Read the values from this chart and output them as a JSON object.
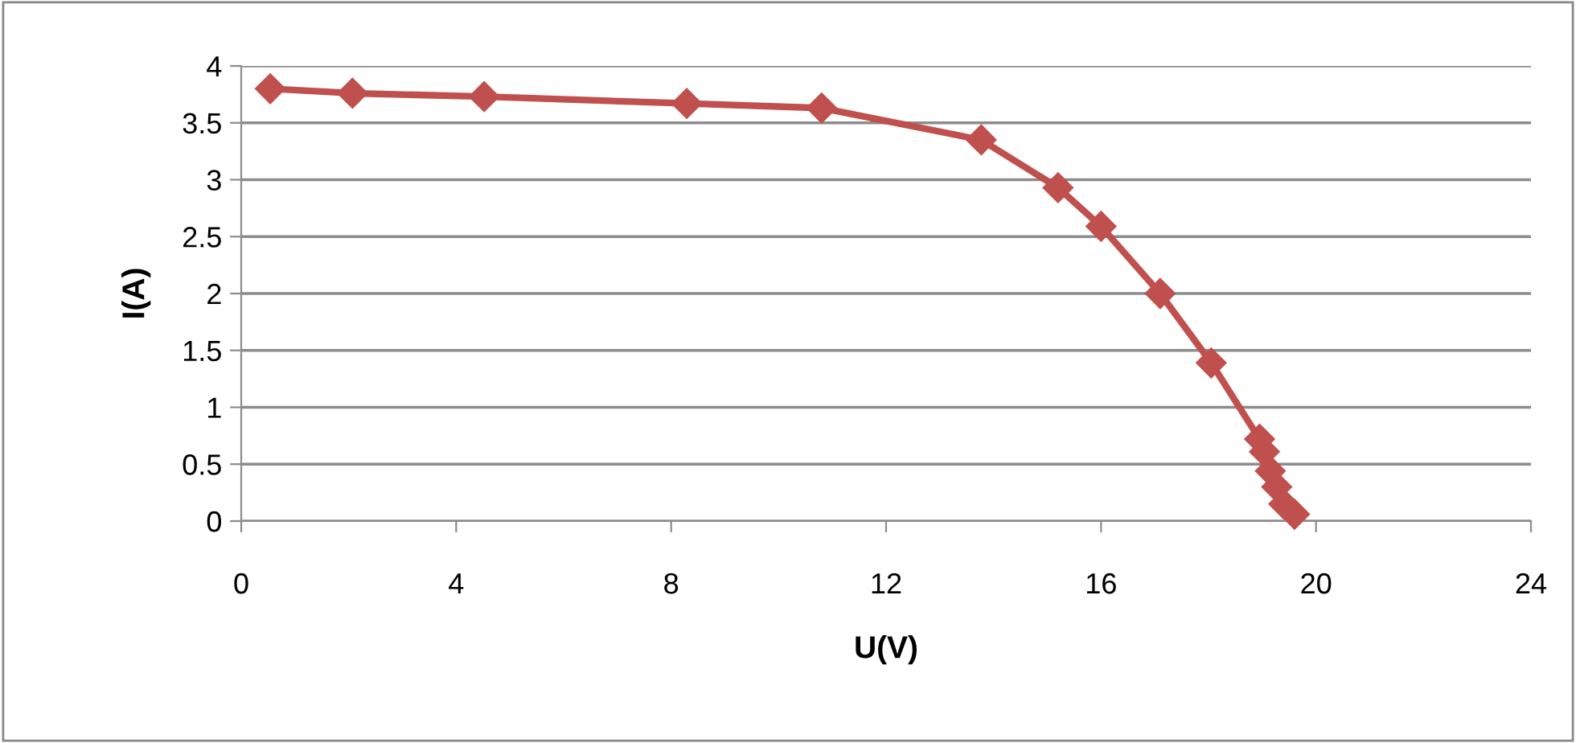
{
  "chart_data": {
    "type": "line",
    "xlabel": "U(V)",
    "ylabel": "I(A)",
    "x": [
      0.54,
      2.07,
      4.52,
      8.29,
      10.8,
      13.77,
      15.2,
      16.0,
      17.1,
      18.05,
      18.95,
      19.04,
      19.15,
      19.27,
      19.4,
      19.6
    ],
    "series": [
      {
        "color": "#c0504d",
        "values": [
          3.8,
          3.76,
          3.73,
          3.67,
          3.63,
          3.35,
          2.93,
          2.59,
          2.0,
          1.39,
          0.72,
          0.61,
          0.44,
          0.3,
          0.15,
          0.06
        ]
      }
    ],
    "xlim": [
      0,
      24
    ],
    "xticks": [
      0,
      4,
      8,
      12,
      16,
      20,
      24
    ],
    "ylim": [
      0,
      4
    ],
    "yticks": [
      0,
      {
        "value": 0.5,
        "label": "0.5"
      },
      1,
      {
        "value": 1.5,
        "label": "1.5"
      },
      2,
      {
        "value": 2.5,
        "label": "2.5"
      },
      3,
      {
        "value": 3.5,
        "label": "3.5"
      },
      4
    ],
    "grid": "y",
    "marker": "diamond",
    "line_style": "solid"
  }
}
